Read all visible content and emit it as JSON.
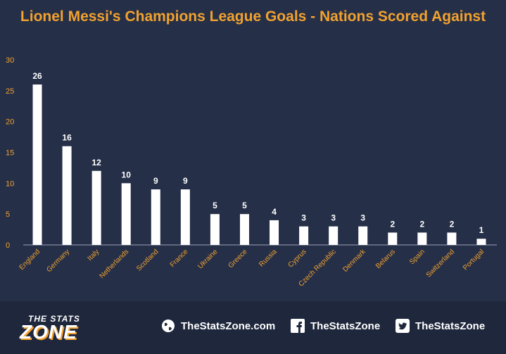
{
  "chart_data": {
    "type": "bar",
    "title": "Lionel Messi's Champions League Goals - Nations Scored Against",
    "categories": [
      "England",
      "Germany",
      "Italy",
      "Netherlands",
      "Scotland",
      "France",
      "Ukraine",
      "Greece",
      "Russia",
      "Cyprus",
      "Czech Republic",
      "Denmark",
      "Belarus",
      "Spain",
      "Switzerland",
      "Portugal"
    ],
    "values": [
      26,
      16,
      12,
      10,
      9,
      9,
      5,
      5,
      4,
      3,
      3,
      3,
      2,
      2,
      2,
      1
    ],
    "ylim": [
      0,
      30
    ],
    "yticks": [
      0,
      5,
      10,
      15,
      20,
      25,
      30
    ],
    "grid": false,
    "colors": {
      "bar": "#ffffff",
      "axis_text": "#f2a22e",
      "value_label": "#ffffff"
    }
  },
  "footer": {
    "logo_line1": "THE STATS",
    "logo_line2": "ZONE",
    "website": "TheStatsZone.com",
    "facebook": "TheStatsZone",
    "twitter": "TheStatsZone"
  }
}
